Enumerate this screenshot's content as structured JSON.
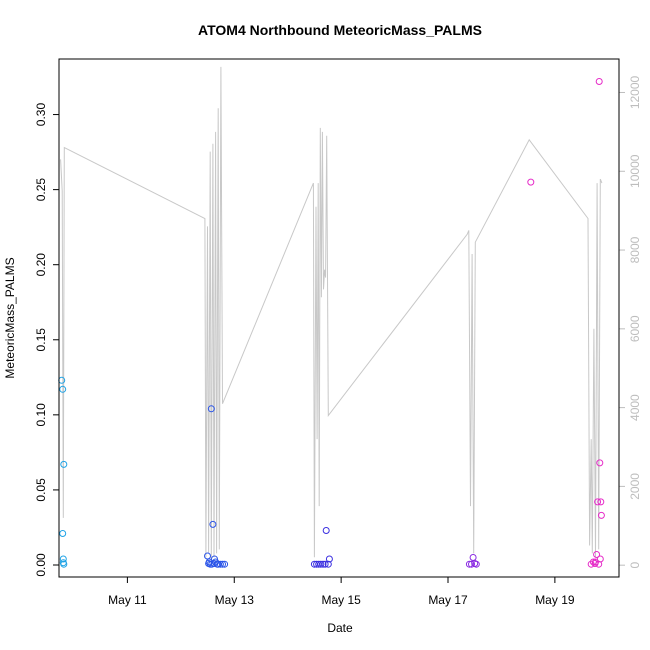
{
  "chart_data": {
    "type": "scatter",
    "title": "ATOM4 Northbound MeteoricMass_PALMS",
    "xlabel": "Date",
    "ylabel": "MeteoricMass_PALMS",
    "y2label": "",
    "xlim": [
      9.72,
      20.2
    ],
    "ylim": [
      -0.008,
      0.337
    ],
    "y2lim": [
      -300,
      12850
    ],
    "x_ticks": [
      {
        "value": 11,
        "label": "May 11"
      },
      {
        "value": 13,
        "label": "May 13"
      },
      {
        "value": 15,
        "label": "May 15"
      },
      {
        "value": 17,
        "label": "May 17"
      },
      {
        "value": 19,
        "label": "May 19"
      }
    ],
    "y_ticks": [
      {
        "value": 0.0,
        "label": "0.00"
      },
      {
        "value": 0.05,
        "label": "0.05"
      },
      {
        "value": 0.1,
        "label": "0.10"
      },
      {
        "value": 0.15,
        "label": "0.15"
      },
      {
        "value": 0.2,
        "label": "0.20"
      },
      {
        "value": 0.25,
        "label": "0.25"
      },
      {
        "value": 0.3,
        "label": "0.30"
      }
    ],
    "y2_ticks": [
      {
        "value": 0,
        "label": "0"
      },
      {
        "value": 2000,
        "label": "2000"
      },
      {
        "value": 4000,
        "label": "4000"
      },
      {
        "value": 6000,
        "label": "6000"
      },
      {
        "value": 8000,
        "label": "8000"
      },
      {
        "value": 10000,
        "label": "10000"
      },
      {
        "value": 12000,
        "label": "12000"
      }
    ],
    "grid": false,
    "colors": {
      "altitude_line": "#c8c8c8",
      "frame": "#000000",
      "right_axis": "#bdbdbd"
    },
    "series": [
      {
        "color": "#1fa3e6",
        "points": [
          [
            9.77,
            0.123
          ],
          [
            9.79,
            0.117
          ],
          [
            9.81,
            0.067
          ],
          [
            9.79,
            0.021
          ],
          [
            9.8,
            0.004
          ],
          [
            9.8,
            0.0015
          ],
          [
            9.81,
            0.0005
          ]
        ]
      },
      {
        "color": "#2b55e8",
        "points": [
          [
            12.5,
            0.006
          ],
          [
            12.53,
            0.002
          ],
          [
            12.55,
            0.0005
          ],
          [
            12.57,
            0.104
          ],
          [
            12.6,
            0.027
          ],
          [
            12.62,
            0.001
          ],
          [
            12.63,
            0.004
          ],
          [
            12.65,
            0.002
          ],
          [
            12.68,
            0.0005
          ],
          [
            12.7,
            0.0005
          ],
          [
            12.74,
            0.0005
          ],
          [
            12.78,
            0.0005
          ],
          [
            12.82,
            0.0005
          ],
          [
            12.52,
            0.001
          ],
          [
            12.58,
            0.0005
          ]
        ]
      },
      {
        "color": "#3a2fe0",
        "points": [
          [
            14.5,
            0.0005
          ],
          [
            14.54,
            0.0005
          ],
          [
            14.58,
            0.0005
          ],
          [
            14.62,
            0.0005
          ],
          [
            14.66,
            0.0005
          ],
          [
            14.7,
            0.0005
          ],
          [
            14.72,
            0.023
          ],
          [
            14.76,
            0.0005
          ],
          [
            14.78,
            0.004
          ]
        ]
      },
      {
        "color": "#8a2be2",
        "points": [
          [
            17.4,
            0.0005
          ],
          [
            17.44,
            0.0005
          ],
          [
            17.47,
            0.005
          ],
          [
            17.5,
            0.001
          ],
          [
            17.53,
            0.0005
          ]
        ]
      },
      {
        "color": "#e62bc8",
        "points": [
          [
            18.55,
            0.255
          ],
          [
            19.68,
            0.0005
          ],
          [
            19.72,
            0.002
          ],
          [
            19.75,
            0.001
          ],
          [
            19.78,
            0.007
          ],
          [
            19.8,
            0.042
          ],
          [
            19.82,
            0.0005
          ],
          [
            19.83,
            0.322
          ],
          [
            19.84,
            0.068
          ],
          [
            19.86,
            0.042
          ],
          [
            19.87,
            0.033
          ],
          [
            19.85,
            0.004
          ],
          [
            19.76,
            0.002
          ]
        ]
      }
    ],
    "altitude_series": [
      [
        9.75,
        10300
      ],
      [
        9.78,
        9500
      ],
      [
        9.8,
        1200
      ],
      [
        9.82,
        10600
      ],
      [
        12.45,
        8800
      ],
      [
        12.47,
        200
      ],
      [
        12.5,
        8600
      ],
      [
        12.52,
        300
      ],
      [
        12.55,
        10500
      ],
      [
        12.57,
        150
      ],
      [
        12.6,
        10700
      ],
      [
        12.62,
        200
      ],
      [
        12.65,
        11000
      ],
      [
        12.67,
        300
      ],
      [
        12.7,
        11600
      ],
      [
        12.72,
        400
      ],
      [
        12.75,
        12650
      ],
      [
        12.78,
        4100
      ],
      [
        14.48,
        9700
      ],
      [
        14.5,
        200
      ],
      [
        14.53,
        9100
      ],
      [
        14.55,
        3200
      ],
      [
        14.57,
        9700
      ],
      [
        14.59,
        1500
      ],
      [
        14.61,
        11100
      ],
      [
        14.63,
        6800
      ],
      [
        14.65,
        11000
      ],
      [
        14.67,
        7000
      ],
      [
        14.69,
        7500
      ],
      [
        14.71,
        7300
      ],
      [
        14.73,
        10900
      ],
      [
        14.76,
        3800
      ],
      [
        17.36,
        8400
      ],
      [
        17.39,
        8500
      ],
      [
        17.42,
        1500
      ],
      [
        17.45,
        7900
      ],
      [
        17.48,
        300
      ],
      [
        17.51,
        8200
      ],
      [
        18.52,
        10800
      ],
      [
        19.62,
        8800
      ],
      [
        19.65,
        500
      ],
      [
        19.68,
        3200
      ],
      [
        19.7,
        300
      ],
      [
        19.73,
        6000
      ],
      [
        19.76,
        200
      ],
      [
        19.79,
        9700
      ],
      [
        19.82,
        400
      ],
      [
        19.85,
        9800
      ],
      [
        19.88,
        9700
      ]
    ]
  }
}
